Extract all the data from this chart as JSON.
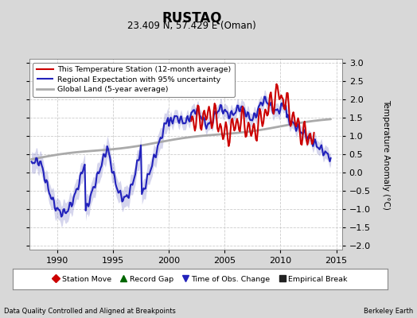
{
  "title": "RUSTAQ",
  "subtitle": "23.409 N, 57.429 E (Oman)",
  "ylabel": "Temperature Anomaly (°C)",
  "xlabel_left": "Data Quality Controlled and Aligned at Breakpoints",
  "xlabel_right": "Berkeley Earth",
  "xlim": [
    1987.5,
    2015.5
  ],
  "ylim": [
    -2.1,
    3.1
  ],
  "yticks": [
    -2,
    -1.5,
    -1,
    -0.5,
    0,
    0.5,
    1,
    1.5,
    2,
    2.5,
    3
  ],
  "xticks": [
    1990,
    1995,
    2000,
    2005,
    2010,
    2015
  ],
  "legend_lines": [
    {
      "label": "This Temperature Station (12-month average)",
      "color": "#cc0000",
      "lw": 1.5
    },
    {
      "label": "Regional Expectation with 95% uncertainty",
      "color": "#2222bb",
      "lw": 1.5
    },
    {
      "label": "Global Land (5-year average)",
      "color": "#aaaaaa",
      "lw": 2.0
    }
  ],
  "legend_markers": [
    {
      "label": "Station Move",
      "color": "#cc0000",
      "marker": "D"
    },
    {
      "label": "Record Gap",
      "color": "#006600",
      "marker": "^"
    },
    {
      "label": "Time of Obs. Change",
      "color": "#2222bb",
      "marker": "v"
    },
    {
      "label": "Empirical Break",
      "color": "#222222",
      "marker": "s"
    }
  ],
  "bg_color": "#d8d8d8",
  "plot_bg_color": "#ffffff",
  "grid_color": "#cccccc",
  "uncertainty_color": "#8888cc",
  "uncertainty_alpha": 0.35
}
